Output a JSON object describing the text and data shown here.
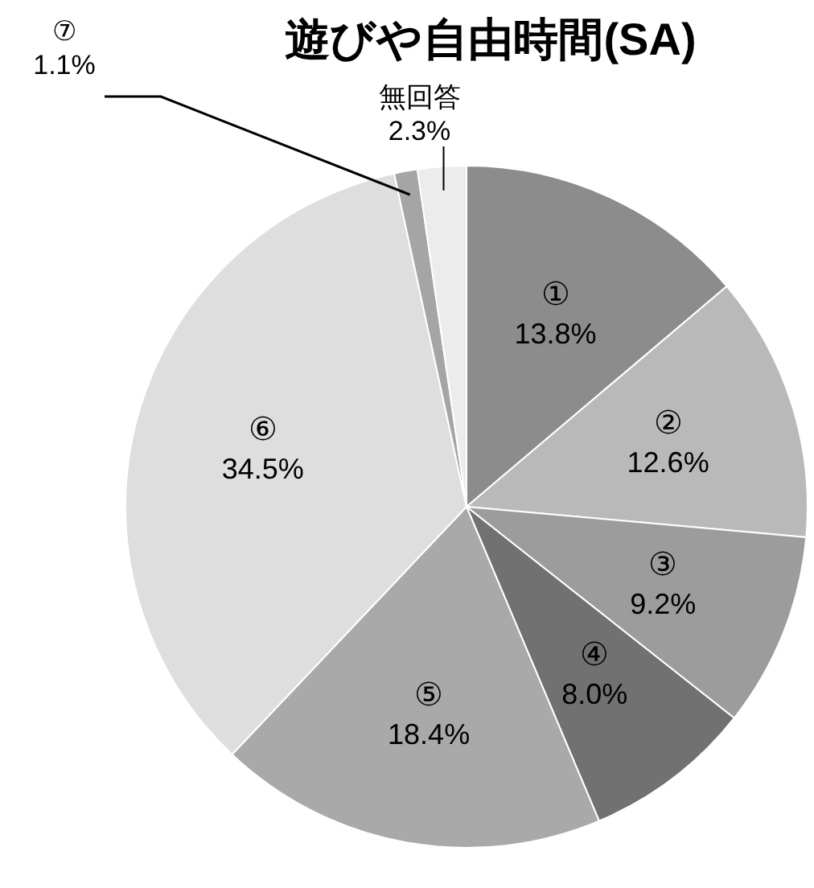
{
  "chart_data": {
    "type": "pie",
    "title": "遊びや自由時間(SA)",
    "categories": [
      "①",
      "②",
      "③",
      "④",
      "⑤",
      "⑥",
      "⑦",
      "無回答"
    ],
    "values": [
      13.8,
      12.6,
      9.2,
      8.0,
      18.4,
      34.5,
      1.1,
      2.3
    ],
    "value_labels": [
      "13.8%",
      "12.6%",
      "9.2%",
      "8.0%",
      "18.4%",
      "34.5%",
      "1.1%",
      "2.3%"
    ],
    "colors": [
      "#8c8c8c",
      "#b9b9b9",
      "#9c9c9c",
      "#717171",
      "#a9a9a9",
      "#dedede",
      "#a5a5a5",
      "#ececec"
    ]
  }
}
